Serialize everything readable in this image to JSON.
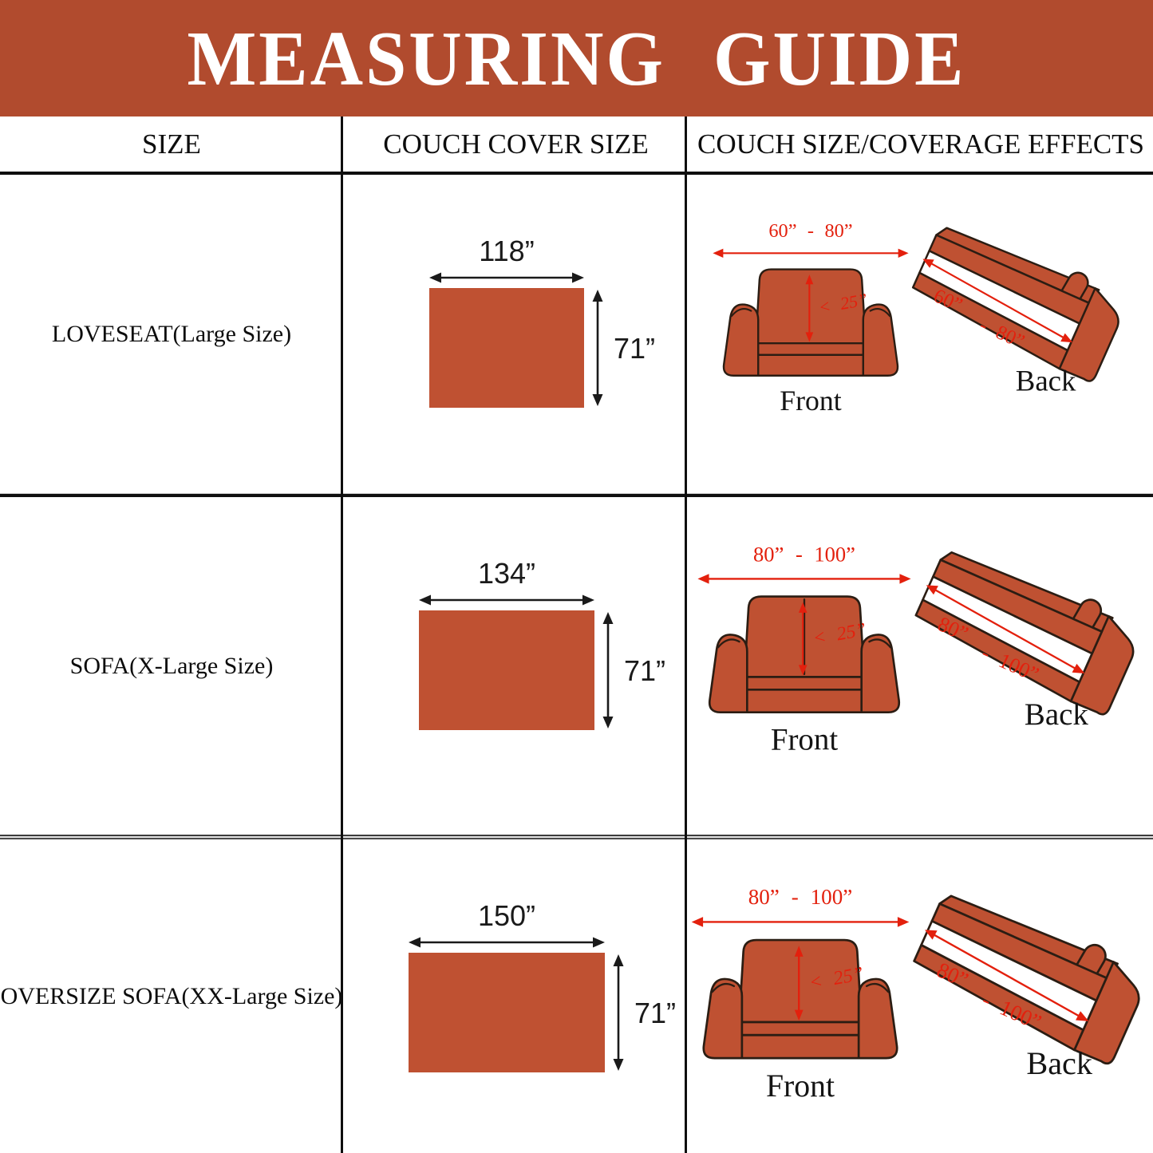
{
  "title": "MEASURING  GUIDE",
  "colors": {
    "banner": "#b14b2e",
    "swatch": "#bf5132",
    "annotation_red": "#e3200d",
    "ink": "#161616"
  },
  "table": {
    "headers": [
      "SIZE",
      "COUCH COVER SIZE",
      "COUCH SIZE/COVERAGE EFFECTS"
    ]
  },
  "rows": [
    {
      "size_label": "LOVESEAT(Large Size)",
      "cover": {
        "width_in": 118,
        "height_in": 71,
        "width_label": "118”",
        "height_label": "71”"
      },
      "front_view": {
        "width_range": "60”  -  80”",
        "back_height": "< 25”",
        "caption": "Front"
      },
      "back_view": {
        "width_start": "60”",
        "width_end": "-  80”",
        "caption": "Back"
      }
    },
    {
      "size_label": "SOFA(X-Large Size)",
      "cover": {
        "width_in": 134,
        "height_in": 71,
        "width_label": "134”",
        "height_label": "71”"
      },
      "front_view": {
        "width_range": "80”  -  100”",
        "back_height": "< 25”",
        "caption": "Front"
      },
      "back_view": {
        "width_start": "80”",
        "width_end": "-  100”",
        "caption": "Back"
      }
    },
    {
      "size_label": "OVERSIZE SOFA(XX-Large Size)",
      "cover": {
        "width_in": 150,
        "height_in": 71,
        "width_label": "150”",
        "height_label": "71”"
      },
      "front_view": {
        "width_range": "80”  -  100”",
        "back_height": "< 25”",
        "caption": "Front"
      },
      "back_view": {
        "width_start": "80”",
        "width_end": "-  100”",
        "caption": "Back"
      }
    }
  ]
}
